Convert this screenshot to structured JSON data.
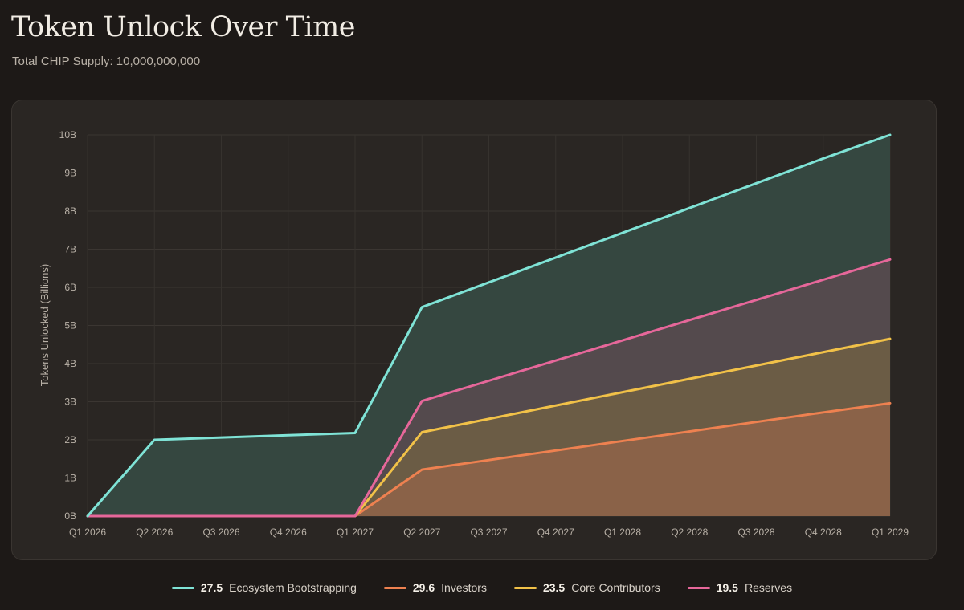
{
  "header": {
    "title": "Token Unlock Over Time",
    "subtitle": "Total CHIP Supply: 10,000,000,000"
  },
  "chart_data": {
    "type": "area",
    "stacked": true,
    "ylabel": "Tokens Unlocked (Billions)",
    "ylim": [
      0,
      10
    ],
    "yticks": [
      "0B",
      "1B",
      "2B",
      "3B",
      "4B",
      "5B",
      "6B",
      "7B",
      "8B",
      "9B",
      "10B"
    ],
    "grid": true,
    "legend_position": "bottom",
    "categories": [
      "Q1 2026",
      "Q2 2026",
      "Q3 2026",
      "Q4 2026",
      "Q1 2027",
      "Q2 2027",
      "Q3 2027",
      "Q4 2027",
      "Q1 2028",
      "Q2 2028",
      "Q3 2028",
      "Q4 2028",
      "Q1 2029"
    ],
    "series": [
      {
        "name": "Investors",
        "legend_value": "29.6",
        "color": "#ee8150",
        "fill": "#8a6248",
        "values": [
          0,
          0,
          0,
          0,
          0,
          1.22,
          1.47,
          1.72,
          1.97,
          2.22,
          2.47,
          2.72,
          2.96
        ]
      },
      {
        "name": "Core Contributors",
        "legend_value": "23.5",
        "color": "#f1c148",
        "fill": "#6b5c45",
        "values": [
          0,
          0,
          0,
          0,
          0,
          2.2,
          2.55,
          2.9,
          3.25,
          3.6,
          3.95,
          4.3,
          4.65
        ]
      },
      {
        "name": "Reserves",
        "legend_value": "19.5",
        "color": "#e6679a",
        "fill": "#544a4d",
        "values": [
          0,
          0,
          0,
          0,
          0,
          3.02,
          3.55,
          4.08,
          4.61,
          5.14,
          5.67,
          6.2,
          6.73
        ]
      },
      {
        "name": "Ecosystem Bootstrapping",
        "legend_value": "27.5",
        "color": "#7fe3d6",
        "fill": "#354740",
        "values": [
          0,
          2.0,
          2.06,
          2.12,
          2.18,
          5.48,
          6.13,
          6.78,
          7.43,
          8.08,
          8.73,
          9.38,
          10.0
        ]
      }
    ],
    "stack_tops": {
      "Investors": [
        0,
        0,
        0,
        0,
        0,
        1.22,
        1.47,
        1.72,
        1.97,
        2.22,
        2.47,
        2.72,
        2.96
      ],
      "Core Contributors": [
        0,
        0,
        0,
        0,
        0,
        2.2,
        2.55,
        2.9,
        3.25,
        3.6,
        3.95,
        4.3,
        4.65
      ],
      "Reserves": [
        0,
        0,
        0,
        0,
        0,
        3.02,
        3.55,
        4.08,
        4.61,
        5.14,
        5.67,
        6.2,
        6.73
      ],
      "Ecosystem Bootstrapping": [
        0,
        2.0,
        2.06,
        2.12,
        2.18,
        5.48,
        6.13,
        6.78,
        7.43,
        8.08,
        8.73,
        9.38,
        10.0
      ]
    },
    "legend_order": [
      "Ecosystem Bootstrapping",
      "Investors",
      "Core Contributors",
      "Reserves"
    ]
  }
}
